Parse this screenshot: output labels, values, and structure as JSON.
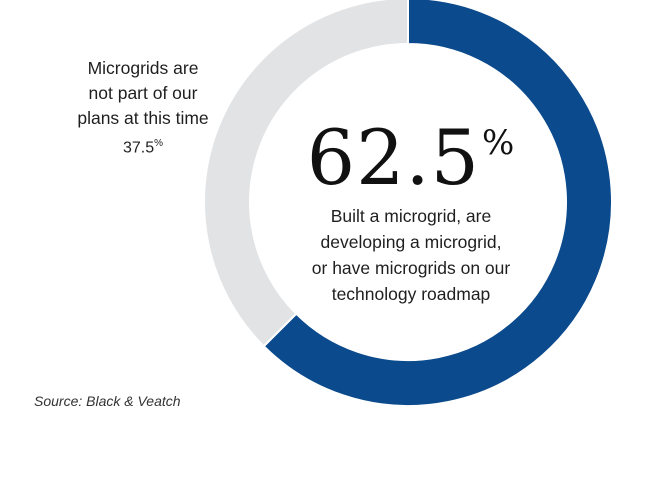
{
  "chart_data": {
    "type": "pie",
    "variant": "donut",
    "slices": [
      {
        "label": "Built a microgrid, are developing a microgrid, or have microgrids on our technology roadmap",
        "value": 62.5,
        "color": "#0b4a8c"
      },
      {
        "label": "Microgrids are not part of our plans at this time",
        "value": 37.5,
        "color": "#e2e3e5"
      }
    ],
    "start": "top",
    "direction": "clockwise"
  },
  "labels": {
    "minor_line1": "Microgrids are",
    "minor_line2": "not part of our",
    "minor_line3": "plans at this time",
    "minor_value": "37.5",
    "minor_unit": "%",
    "major_value": "62.5",
    "major_unit": "%",
    "major_line1": "Built a microgrid, are",
    "major_line2": "developing a microgrid,",
    "major_line3": "or have microgrids on our",
    "major_line4": "technology roadmap"
  },
  "source": "Source: Black & Veatch"
}
